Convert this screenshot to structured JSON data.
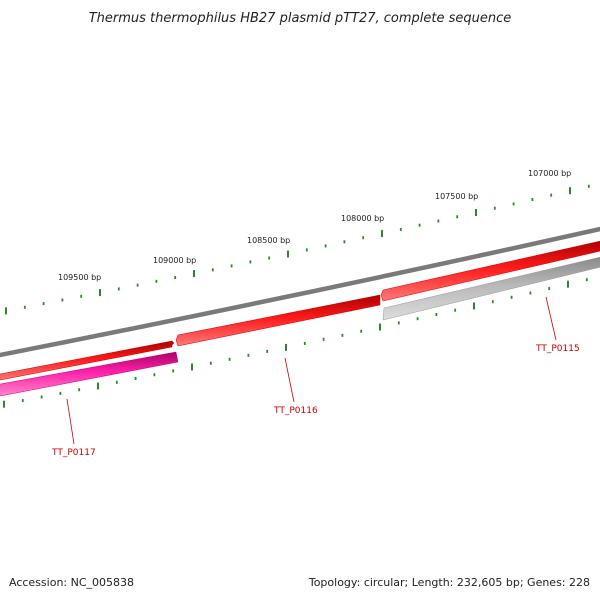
{
  "title": "Thermus thermophilus HB27 plasmid pTT27, complete sequence",
  "footer": {
    "accession": "Accession: NC_005838",
    "summary": "Topology: circular; Length: 232,605 bp; Genes: 228"
  },
  "colors": {
    "backbone": "#7a7a7a",
    "gene_red": "#ee0000",
    "gene_pink": "#ee1199",
    "gene_gray": "#aaaaaa",
    "tick": "#2a8a2a",
    "label_red": "#cc0000"
  },
  "scale_labels": [
    "109500 bp",
    "109000 bp",
    "108500 bp",
    "108000 bp",
    "107500 bp",
    "107000 bp"
  ],
  "genes": [
    {
      "name": "TT_P0117",
      "color": "pink"
    },
    {
      "name": "TT_P0116",
      "color": "red"
    },
    {
      "name": "TT_P0115",
      "color": "gray"
    }
  ]
}
